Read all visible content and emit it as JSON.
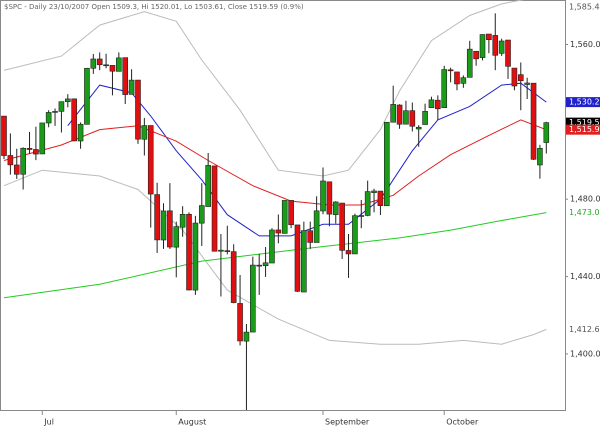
{
  "chart_data": {
    "type": "candlestick",
    "title": "$SPC - Daily 23/10/2007 Open 1509.3, Hi 1520.01, Lo 1503.61, Close 1519.59 (0.9%)",
    "categories": [
      null,
      null,
      null,
      null,
      null,
      null,
      "Jul",
      null,
      null,
      null,
      null,
      null,
      null,
      null,
      null,
      null,
      null,
      null,
      null,
      null,
      null,
      null,
      null,
      null,
      null,
      null,
      null,
      "August",
      null,
      null,
      null,
      null,
      null,
      null,
      null,
      null,
      null,
      null,
      null,
      null,
      null,
      null,
      null,
      null,
      null,
      null,
      null,
      null,
      null,
      null,
      "September",
      null,
      null,
      null,
      null,
      null,
      null,
      null,
      null,
      null,
      null,
      null,
      null,
      null,
      null,
      null,
      null,
      null,
      null,
      "October",
      null,
      null,
      null,
      null,
      null,
      null,
      null,
      null,
      null,
      null,
      null,
      null,
      null,
      null,
      null,
      null
    ],
    "open": [
      1522.97,
      1502.6,
      1497.7,
      1492.9,
      1506.3,
      1505.7,
      1503.4,
      1519.4,
      1524.9,
      1525.4,
      1530.4,
      1531.9,
      1510.1,
      1518.7,
      1547.7,
      1552.5,
      1549.5,
      1549.2,
      1546.1,
      1553.2,
      1534.2,
      1541.6,
      1511.0,
      1518.1,
      1482.4,
      1458.9,
      1474.0,
      1455.2,
      1465.5,
      1472.2,
      1433.0,
      1467.6,
      1476.2,
      1497.2,
      1453.1,
      1453.4,
      1452.9,
      1426.1,
      1406.6,
      1411.3,
      1445.9,
      1445.6,
      1447.0,
      1464.1,
      1462.3,
      1479.4,
      1466.7,
      1432.0,
      1463.7,
      1457.6,
      1473.9,
      1489.0,
      1472.0,
      1478.0,
      1453.5,
      1451.7,
      1471.1,
      1471.6,
      1483.4,
      1484.2,
      1476.6,
      1519.8,
      1528.7,
      1518.8,
      1525.8,
      1516.3,
      1518.6,
      1527.3,
      1531.2,
      1527.3,
      1546.9,
      1545.8,
      1539.9,
      1543.0,
      1556.5,
      1553.2,
      1565.4,
      1564.7,
      1555.4,
      1562.3,
      1547.8,
      1544.4,
      1539.3,
      1540.0,
      1497.7,
      1509.3
    ],
    "high": [
      1522.97,
      1514.0,
      1506.1,
      1506.8,
      1514.8,
      1517.5,
      1519.5,
      1526.0,
      1526.9,
      1530.4,
      1534.3,
      1531.9,
      1519.7,
      1547.9,
      1555.1,
      1555.9,
      1555.2,
      1549.2,
      1555.9,
      1553.2,
      1547.2,
      1541.6,
      1522.0,
      1518.1,
      1488.5,
      1477.9,
      1488.3,
      1468.4,
      1476.4,
      1473.2,
      1471.4,
      1488.3,
      1503.9,
      1497.2,
      1462.0,
      1466.3,
      1456.7,
      1440.8,
      1415.5,
      1450.3,
      1451.8,
      1455.3,
      1465.0,
      1472.1,
      1479.4,
      1479.4,
      1466.7,
      1468.4,
      1468.4,
      1481.5,
      1496.4,
      1489.0,
      1479.0,
      1478.0,
      1462.0,
      1472.5,
      1479.6,
      1489.6,
      1485.4,
      1484.2,
      1519.9,
      1538.7,
      1529.1,
      1530.9,
      1530.0,
      1518.3,
      1529.4,
      1533.0,
      1533.7,
      1549.0,
      1548.0,
      1545.8,
      1544.0,
      1561.9,
      1556.5,
      1565.3,
      1565.4,
      1576.1,
      1563.0,
      1562.3,
      1547.8,
      1550.7,
      1542.8,
      1540.0,
      1508.1,
      1520.01
    ],
    "low": [
      1500.7,
      1492.7,
      1490.5,
      1485.0,
      1503.4,
      1500.2,
      1503.4,
      1517.2,
      1517.9,
      1514.5,
      1527.5,
      1510.0,
      1506.1,
      1518.7,
      1544.8,
      1546.7,
      1547.7,
      1533.7,
      1546.1,
      1529.2,
      1534.2,
      1508.6,
      1502.6,
      1465.3,
      1452.2,
      1454.3,
      1454.3,
      1439.6,
      1460.6,
      1432.8,
      1430.5,
      1455.8,
      1476.2,
      1453.0,
      1429.7,
      1451.5,
      1426.2,
      1404.4,
      1370.6,
      1411.3,
      1430.5,
      1439.8,
      1447.0,
      1457.2,
      1462.3,
      1465.0,
      1432.0,
      1432.0,
      1454.3,
      1457.6,
      1472.2,
      1466.0,
      1467.4,
      1449.1,
      1439.3,
      1451.7,
      1465.0,
      1471.2,
      1473.2,
      1471.8,
      1476.6,
      1519.8,
      1516.4,
      1518.8,
      1515.0,
      1507.1,
      1518.6,
      1527.3,
      1521.0,
      1527.3,
      1540.4,
      1536.3,
      1537.6,
      1543.0,
      1549.0,
      1551.8,
      1555.5,
      1546.7,
      1554.1,
      1542.2,
      1536.3,
      1526.0,
      1531.8,
      1500.3,
      1490.6,
      1503.61
    ],
    "close": [
      1502.56,
      1497.74,
      1492.89,
      1506.34,
      1505.71,
      1503.35,
      1519.43,
      1524.87,
      1525.4,
      1530.44,
      1531.85,
      1510.12,
      1518.76,
      1547.7,
      1552.5,
      1549.52,
      1549.37,
      1546.17,
      1553.08,
      1534.1,
      1541.57,
      1511.04,
      1518.09,
      1482.66,
      1458.95,
      1473.91,
      1455.27,
      1465.81,
      1472.2,
      1433.06,
      1467.67,
      1476.71,
      1497.49,
      1453.09,
      1453.64,
      1452.92,
      1426.54,
      1406.7,
      1411.27,
      1445.94,
      1445.55,
      1447.12,
      1464.07,
      1462.5,
      1479.37,
      1466.79,
      1432.36,
      1463.76,
      1457.64,
      1473.99,
      1489.42,
      1472.29,
      1478.55,
      1453.55,
      1451.7,
      1471.49,
      1471.56,
      1483.95,
      1484.25,
      1476.65,
      1519.78,
      1529.03,
      1518.75,
      1525.75,
      1517.73,
      1517.21,
      1525.42,
      1531.38,
      1526.75,
      1547.04,
      1546.63,
      1539.59,
      1542.84,
      1557.59,
      1552.58,
      1565.15,
      1562.47,
      1554.41,
      1561.8,
      1548.71,
      1538.53,
      1541.24,
      1540.08,
      1500.63,
      1506.33,
      1519.59
    ],
    "up_color": "#1a9c1a",
    "down_color": "#e01010",
    "ylim": [
      1371,
      1583
    ],
    "yticks": [
      {
        "value": 1400,
        "label": "1,400.0"
      },
      {
        "value": 1440,
        "label": "1,440.0"
      },
      {
        "value": 1480,
        "label": "1,480.0"
      },
      {
        "value": 1560,
        "label": "1,560.0"
      }
    ],
    "overlays": [
      {
        "color": "#bbbbbb",
        "x": [
          0,
          9,
          15,
          22,
          27,
          31,
          37,
          43,
          50,
          54,
          59,
          62,
          67,
          73,
          78,
          85
        ],
        "values": [
          1546.6,
          1554,
          1570,
          1577,
          1572,
          1552,
          1526,
          1495,
          1492,
          1495,
          1516,
          1536,
          1562,
          1575,
          1581,
          1585.47
        ]
      },
      {
        "color": "#bbbbbb",
        "x": [
          0,
          6,
          15,
          21,
          28,
          35,
          43,
          51,
          59,
          65,
          72,
          78,
          83,
          85
        ],
        "values": [
          1487,
          1495,
          1492,
          1485,
          1464,
          1433,
          1418,
          1407,
          1405,
          1405,
          1407,
          1405,
          1410,
          1412.69
        ]
      },
      {
        "color": "#2222cc",
        "x": [
          10,
          15,
          20,
          23,
          27,
          31,
          35,
          40,
          45,
          50,
          54,
          59,
          64,
          68,
          73,
          78,
          81,
          85
        ],
        "values": [
          1518,
          1539,
          1535,
          1523,
          1505,
          1490,
          1472,
          1461,
          1461,
          1467,
          1467,
          1480,
          1505,
          1521,
          1528,
          1539,
          1540,
          1530.2
        ]
      },
      {
        "color": "#e02020",
        "x": [
          0,
          9,
          15,
          21,
          27,
          32,
          39,
          45,
          51,
          56,
          61,
          65,
          70,
          76,
          81,
          85
        ],
        "values": [
          1500,
          1508,
          1516,
          1518,
          1510,
          1500,
          1487,
          1479,
          1477,
          1477,
          1482,
          1492,
          1503,
          1513,
          1521,
          1515.95
        ]
      },
      {
        "color": "#22cc22",
        "x": [
          0,
          15,
          31,
          46,
          62,
          70,
          78,
          85
        ],
        "values": [
          1429,
          1436,
          1448,
          1454,
          1460,
          1464,
          1469,
          1473.08
        ]
      }
    ],
    "price_labels": [
      {
        "value": 1585.47,
        "label": "1,585.47",
        "color": "#555555",
        "box": false
      },
      {
        "value": 1530.2,
        "label": "1,530.2",
        "color": "#2222cc",
        "box": true
      },
      {
        "value": 1519.59,
        "label": "1,519.59",
        "color": "#000000",
        "box": true
      },
      {
        "value": 1515.95,
        "label": "1,515.95",
        "color": "#e02020",
        "box": true
      },
      {
        "value": 1473.08,
        "label": "1,473.08",
        "color": "#22aa22",
        "box": false
      },
      {
        "value": 1412.69,
        "label": "1,412.69",
        "color": "#555555",
        "box": false
      }
    ]
  }
}
